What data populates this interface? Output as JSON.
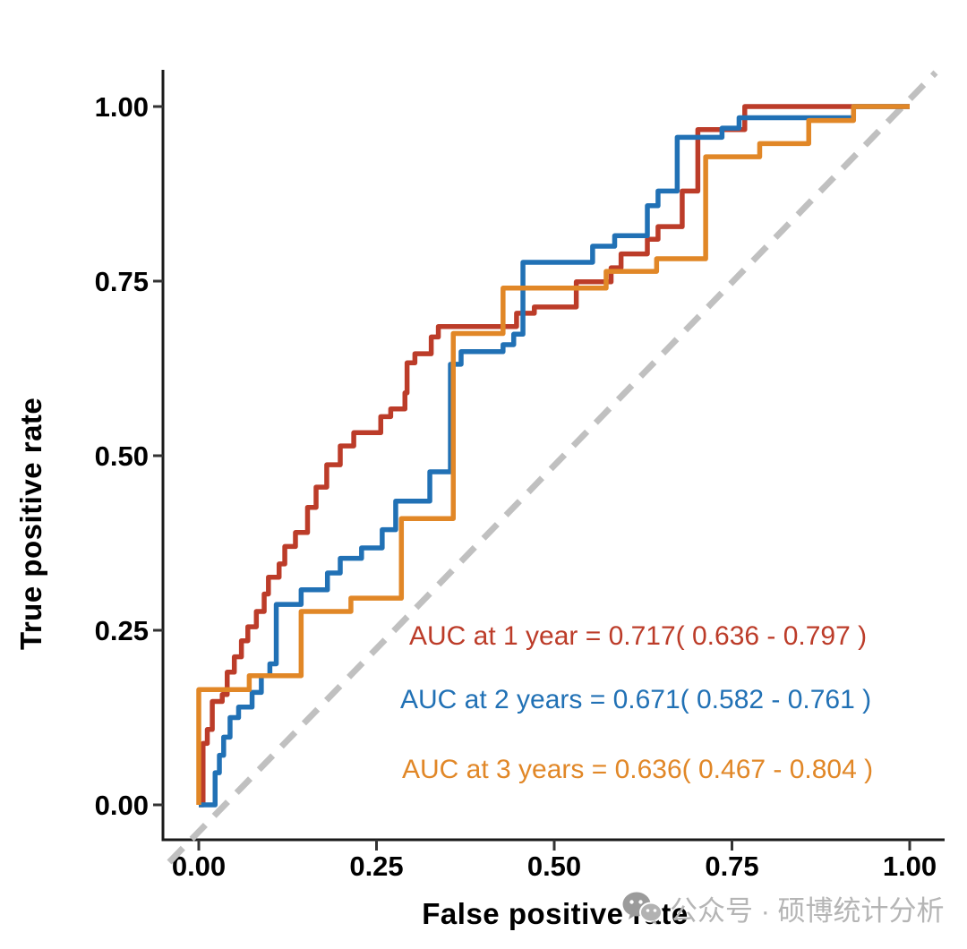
{
  "chart": {
    "watermark": {
      "icon": "wechat-icon",
      "text": "公众号 · 硕博统计分析",
      "color": "#b5b5b5"
    }
  },
  "chart_data": {
    "type": "line",
    "subtype": "step-roc-curves",
    "title": "",
    "xlabel": "False positive rate",
    "ylabel": "True positive rate",
    "xlim": [
      0,
      1
    ],
    "ylim": [
      0,
      1
    ],
    "grid": false,
    "legend_position": "none",
    "x_ticks": {
      "values": [
        0,
        0.25,
        0.5,
        0.75,
        1.0
      ],
      "labels": [
        "0.00",
        "0.25",
        "0.50",
        "0.75",
        "1.00"
      ]
    },
    "y_ticks": {
      "values": [
        0,
        0.25,
        0.5,
        0.75,
        1.0
      ],
      "labels": [
        "0.00",
        "0.25",
        "0.50",
        "0.75",
        "1.00"
      ]
    },
    "reference_line": {
      "name": "chance-diagonal",
      "style": "dashed",
      "color": "#c0c0c0",
      "from": [
        0,
        0
      ],
      "to": [
        1,
        1
      ]
    },
    "axis_color": "#1a1a1a",
    "tick_label_color": "#000000",
    "series": [
      {
        "id": "1-year",
        "name": "AUC at 1 year",
        "auc": 0.717,
        "ci_low": 0.636,
        "ci_high": 0.797,
        "label": "AUC at 1 year = 0.717( 0.636 - 0.797 )",
        "color": "#BC3C29",
        "points": [
          [
            0,
            0
          ],
          [
            0.006,
            0.088
          ],
          [
            0.012,
            0.108
          ],
          [
            0.019,
            0.148
          ],
          [
            0.033,
            0.158
          ],
          [
            0.04,
            0.19
          ],
          [
            0.05,
            0.212
          ],
          [
            0.06,
            0.235
          ],
          [
            0.069,
            0.255
          ],
          [
            0.081,
            0.277
          ],
          [
            0.092,
            0.302
          ],
          [
            0.098,
            0.326
          ],
          [
            0.113,
            0.345
          ],
          [
            0.121,
            0.37
          ],
          [
            0.136,
            0.39
          ],
          [
            0.153,
            0.426
          ],
          [
            0.165,
            0.455
          ],
          [
            0.18,
            0.487
          ],
          [
            0.199,
            0.514
          ],
          [
            0.218,
            0.533
          ],
          [
            0.256,
            0.556
          ],
          [
            0.27,
            0.567
          ],
          [
            0.29,
            0.59
          ],
          [
            0.293,
            0.633
          ],
          [
            0.304,
            0.646
          ],
          [
            0.327,
            0.67
          ],
          [
            0.337,
            0.685
          ],
          [
            0.447,
            0.704
          ],
          [
            0.472,
            0.713
          ],
          [
            0.531,
            0.749
          ],
          [
            0.58,
            0.769
          ],
          [
            0.594,
            0.789
          ],
          [
            0.631,
            0.81
          ],
          [
            0.646,
            0.828
          ],
          [
            0.68,
            0.879
          ],
          [
            0.702,
            0.967
          ],
          [
            0.768,
            1.0
          ],
          [
            1.0,
            1.0
          ]
        ]
      },
      {
        "id": "2-years",
        "name": "AUC at 2 years",
        "auc": 0.671,
        "ci_low": 0.582,
        "ci_high": 0.761,
        "label": "AUC at 2 years = 0.671( 0.582 - 0.761 )",
        "color": "#2171B5",
        "points": [
          [
            0,
            0
          ],
          [
            0.023,
            0.046
          ],
          [
            0.029,
            0.071
          ],
          [
            0.035,
            0.097
          ],
          [
            0.044,
            0.125
          ],
          [
            0.056,
            0.14
          ],
          [
            0.075,
            0.161
          ],
          [
            0.088,
            0.185
          ],
          [
            0.1,
            0.202
          ],
          [
            0.109,
            0.287
          ],
          [
            0.144,
            0.308
          ],
          [
            0.181,
            0.332
          ],
          [
            0.199,
            0.353
          ],
          [
            0.229,
            0.368
          ],
          [
            0.258,
            0.394
          ],
          [
            0.277,
            0.435
          ],
          [
            0.325,
            0.477
          ],
          [
            0.354,
            0.631
          ],
          [
            0.369,
            0.649
          ],
          [
            0.428,
            0.659
          ],
          [
            0.443,
            0.674
          ],
          [
            0.456,
            0.777
          ],
          [
            0.554,
            0.8
          ],
          [
            0.585,
            0.815
          ],
          [
            0.631,
            0.858
          ],
          [
            0.646,
            0.879
          ],
          [
            0.673,
            0.956
          ],
          [
            0.736,
            0.969
          ],
          [
            0.76,
            0.984
          ],
          [
            0.921,
            1.0
          ],
          [
            1.0,
            1.0
          ]
        ]
      },
      {
        "id": "3-years",
        "name": "AUC at 3 years",
        "auc": 0.636,
        "ci_low": 0.467,
        "ci_high": 0.804,
        "label": "AUC at 3 years = 0.636( 0.467 - 0.804 )",
        "color": "#E18727",
        "points": [
          [
            0,
            0
          ],
          [
            0,
            0.165
          ],
          [
            0.071,
            0.185
          ],
          [
            0.144,
            0.277
          ],
          [
            0.214,
            0.296
          ],
          [
            0.285,
            0.41
          ],
          [
            0.358,
            0.675
          ],
          [
            0.428,
            0.74
          ],
          [
            0.573,
            0.764
          ],
          [
            0.644,
            0.782
          ],
          [
            0.713,
            0.928
          ],
          [
            0.789,
            0.947
          ],
          [
            0.858,
            0.98
          ],
          [
            0.921,
            1.0
          ],
          [
            1.0,
            1.0
          ]
        ]
      }
    ]
  }
}
